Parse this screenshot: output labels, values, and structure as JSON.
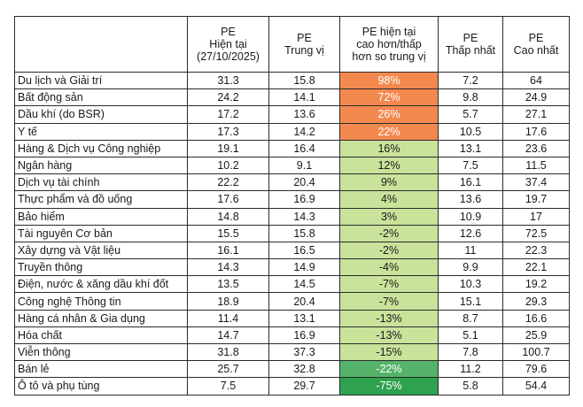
{
  "table": {
    "headers": {
      "sector": "",
      "pe_current": "PE\nHiện tại\n(27/10/2025)",
      "pe_median": "PE\nTrung vị",
      "pe_diff": "PE hiện tại\ncao hơn/thấp\nhơn so trung vị",
      "pe_min": "PE\nThấp nhất",
      "pe_max": "PE\nCao nhất"
    },
    "rows": [
      {
        "sector": "Du lịch và Giải trí",
        "current": "31.3",
        "median": "15.8",
        "diff": "98%",
        "min": "7.2",
        "max": "64",
        "tone": "diff-pos-strong"
      },
      {
        "sector": "Bất động sản",
        "current": "24.2",
        "median": "14.1",
        "diff": "72%",
        "min": "9.8",
        "max": "24.9",
        "tone": "diff-pos-strong"
      },
      {
        "sector": "Dầu khí (do BSR)",
        "current": "17.2",
        "median": "13.6",
        "diff": "26%",
        "min": "5.7",
        "max": "27.1",
        "tone": "diff-pos-strong"
      },
      {
        "sector": "Y tế",
        "current": "17.3",
        "median": "14.2",
        "diff": "22%",
        "min": "10.5",
        "max": "17.6",
        "tone": "diff-pos-strong"
      },
      {
        "sector": "Hàng & Dịch vụ Công nghiệp",
        "current": "19.1",
        "median": "16.4",
        "diff": "16%",
        "min": "13.1",
        "max": "23.6",
        "tone": "diff-green-light"
      },
      {
        "sector": "Ngân hàng",
        "current": "10.2",
        "median": "9.1",
        "diff": "12%",
        "min": "7.5",
        "max": "11.5",
        "tone": "diff-green-light"
      },
      {
        "sector": "Dịch vụ tài chính",
        "current": "22.2",
        "median": "20.4",
        "diff": "9%",
        "min": "16.1",
        "max": "37.4",
        "tone": "diff-green-light"
      },
      {
        "sector": "Thực phẩm và đồ uống",
        "current": "17.6",
        "median": "16.9",
        "diff": "4%",
        "min": "13.6",
        "max": "19.7",
        "tone": "diff-green-light"
      },
      {
        "sector": "Bảo hiểm",
        "current": "14.8",
        "median": "14.3",
        "diff": "3%",
        "min": "10.9",
        "max": "17",
        "tone": "diff-green-light"
      },
      {
        "sector": "Tài nguyên Cơ bản",
        "current": "15.5",
        "median": "15.8",
        "diff": "-2%",
        "min": "12.6",
        "max": "72.5",
        "tone": "diff-green-light"
      },
      {
        "sector": "Xây dựng và Vật liệu",
        "current": "16.1",
        "median": "16.5",
        "diff": "-2%",
        "min": "11",
        "max": "22.3",
        "tone": "diff-green-light"
      },
      {
        "sector": "Truyền thông",
        "current": "14.3",
        "median": "14.9",
        "diff": "-4%",
        "min": "9.9",
        "max": "22.1",
        "tone": "diff-green-light"
      },
      {
        "sector": "Điện, nước & xăng dầu khí đốt",
        "current": "13.5",
        "median": "14.5",
        "diff": "-7%",
        "min": "10.3",
        "max": "19.2",
        "tone": "diff-green-light"
      },
      {
        "sector": "Công nghệ Thông tin",
        "current": "18.9",
        "median": "20.4",
        "diff": "-7%",
        "min": "15.1",
        "max": "29.3",
        "tone": "diff-green-light"
      },
      {
        "sector": "Hàng cá nhân & Gia dụng",
        "current": "11.4",
        "median": "13.1",
        "diff": "-13%",
        "min": "8.7",
        "max": "16.6",
        "tone": "diff-green-light"
      },
      {
        "sector": "Hóa chất",
        "current": "14.7",
        "median": "16.9",
        "diff": "-13%",
        "min": "5.1",
        "max": "25.9",
        "tone": "diff-green-light"
      },
      {
        "sector": "Viễn thông",
        "current": "31.8",
        "median": "37.3",
        "diff": "-15%",
        "min": "7.8",
        "max": "100.7",
        "tone": "diff-green-light"
      },
      {
        "sector": "Bán lẻ",
        "current": "25.7",
        "median": "32.8",
        "diff": "-22%",
        "min": "11.2",
        "max": "79.6",
        "tone": "diff-green-mid"
      },
      {
        "sector": "Ô tô và phụ tùng",
        "current": "7.5",
        "median": "29.7",
        "diff": "-75%",
        "min": "5.8",
        "max": "54.4",
        "tone": "diff-green-dark"
      }
    ]
  }
}
